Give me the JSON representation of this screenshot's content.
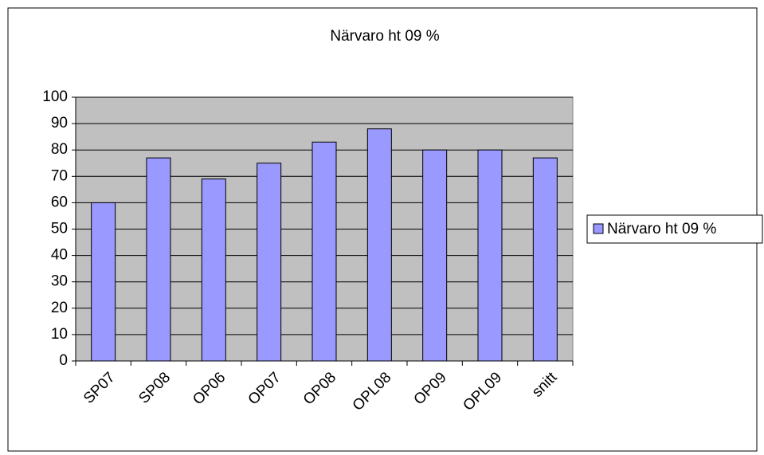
{
  "chart_data": {
    "type": "bar",
    "title": "Närvaro ht 09 %",
    "categories": [
      "SP07",
      "SP08",
      "OP06",
      "OP07",
      "OP08",
      "OPL08",
      "OP09",
      "OPL09",
      "snitt"
    ],
    "series": [
      {
        "name": "Närvaro ht 09 %",
        "color": "#9999ff",
        "values": [
          60,
          77,
          69,
          75,
          83,
          88,
          80,
          80,
          77
        ]
      }
    ],
    "ylim": [
      0,
      100
    ],
    "yticks": [
      0,
      10,
      20,
      30,
      40,
      50,
      60,
      70,
      80,
      90,
      100
    ],
    "grid": true,
    "legend": "right"
  }
}
